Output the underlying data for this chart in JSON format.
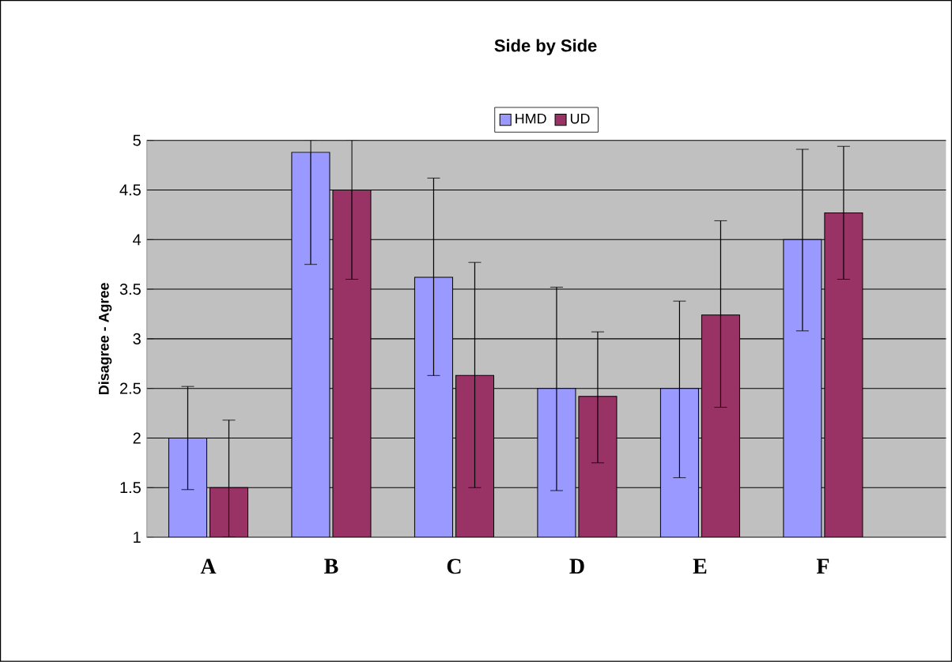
{
  "chart_data": {
    "type": "bar",
    "title": "Side by Side",
    "ylabel": "Disagree - Agree",
    "categories": [
      "A",
      "B",
      "C",
      "D",
      "E",
      "F"
    ],
    "series": [
      {
        "name": "HMD",
        "color": "#9999ff",
        "values": [
          2.0,
          4.88,
          3.62,
          2.5,
          2.5,
          4.0
        ],
        "errors": [
          [
            1.48,
            2.52
          ],
          [
            3.75,
            5
          ],
          [
            2.63,
            4.62
          ],
          [
            1.47,
            3.52
          ],
          [
            1.6,
            3.38
          ],
          [
            3.08,
            4.91
          ]
        ]
      },
      {
        "name": "UD",
        "color": "#993366",
        "values": [
          1.5,
          4.5,
          2.63,
          2.42,
          3.24,
          4.27
        ],
        "errors": [
          [
            1.0,
            2.18
          ],
          [
            3.6,
            5
          ],
          [
            1.5,
            3.77
          ],
          [
            1.75,
            3.07
          ],
          [
            2.31,
            4.19
          ],
          [
            3.6,
            4.94
          ]
        ]
      }
    ],
    "ylim": [
      1,
      5
    ],
    "yticks": [
      1,
      1.5,
      2,
      2.5,
      3,
      3.5,
      4,
      4.5,
      5
    ],
    "grid": "y",
    "legend": "top"
  }
}
